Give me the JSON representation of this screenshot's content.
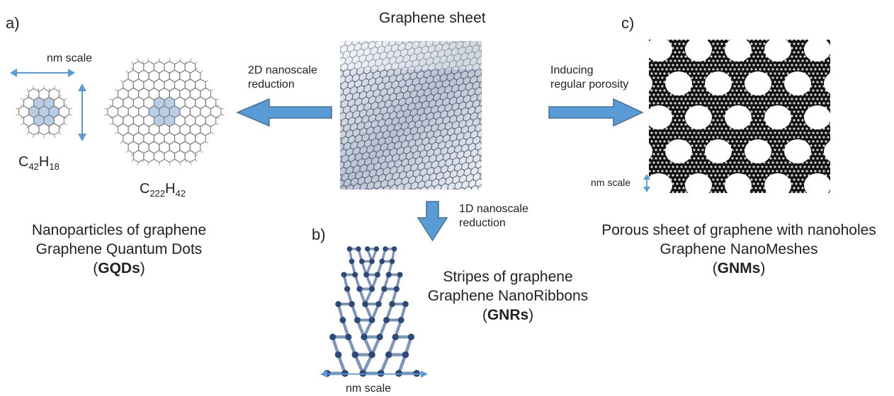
{
  "center": {
    "title": "Graphene sheet"
  },
  "panel_a": {
    "letter": "a)",
    "scale_label": "nm scale",
    "formula_small": {
      "c": "C",
      "c_sub": "42",
      "h": "H",
      "h_sub": "18"
    },
    "formula_large": {
      "c": "C",
      "c_sub": "222",
      "h": "H",
      "h_sub": "42"
    },
    "caption_line1": "Nanoparticles of graphene",
    "caption_line2": "Graphene Quantum Dots",
    "caption_paren_open": "(",
    "caption_abbrev": "GQDs",
    "caption_paren_close": ")"
  },
  "panel_b": {
    "letter": "b)",
    "scale_label": "nm scale",
    "caption_line1": "Stripes of graphene",
    "caption_line2": "Graphene NanoRibbons",
    "caption_paren_open": "(",
    "caption_abbrev": "GNRs",
    "caption_paren_close": ")"
  },
  "panel_c": {
    "letter": "c)",
    "scale_label": "nm scale",
    "caption_line1": "Porous sheet of graphene with nanoholes",
    "caption_line2": "Graphene NanoMeshes",
    "caption_paren_open": "(",
    "caption_abbrev": "GNMs",
    "caption_paren_close": ")"
  },
  "arrows": {
    "left_line1": "2D nanoscale",
    "left_line2": "reduction",
    "right_line1": "Inducing",
    "right_line2": "regular porosity",
    "down_line1": "1D nanoscale",
    "down_line2": "reduction",
    "arrow_color": "#5b9bd5",
    "arrow_edge_color": "#41719c"
  },
  "colors": {
    "highlight": "#b8cde6",
    "scale_arrow": "#5b9bd5",
    "lattice": "#7a7a7a",
    "ribbon": "#2c4a78",
    "mesh": "#111111"
  }
}
